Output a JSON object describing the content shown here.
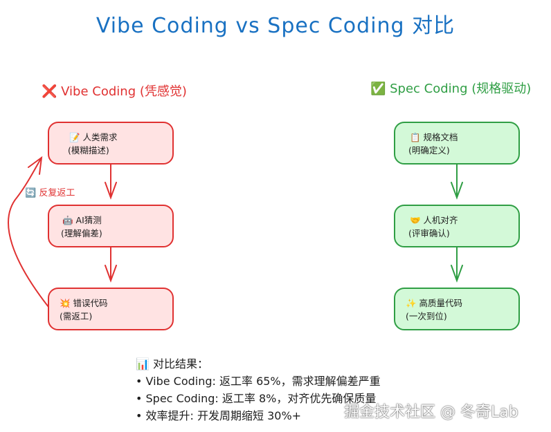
{
  "title": "Vibe Coding vs Spec Coding 对比",
  "vibe": {
    "heading": "❌ Vibe Coding (凭感觉)",
    "loop_label": "🔄 反复返工",
    "steps": [
      {
        "line1": "📝 人类需求",
        "line2": "(模糊描述)"
      },
      {
        "line1": "🤖 AI猜测",
        "line2": "(理解偏差)"
      },
      {
        "line1": "💥 错误代码",
        "line2": "(需返工)"
      }
    ]
  },
  "spec": {
    "heading": "✅ Spec Coding (规格驱动)",
    "steps": [
      {
        "line1": "📋 规格文档",
        "line2": "(明确定义)"
      },
      {
        "line1": "🤝 人机对齐",
        "line2": "(评审确认)"
      },
      {
        "line1": "✨ 高质量代码",
        "line2": "(一次到位)"
      }
    ]
  },
  "summary": {
    "heading": "📊 对比结果：",
    "items": [
      "• Vibe Coding: 返工率 65%，需求理解偏差严重",
      "• Spec Coding: 返工率 8%，对齐优先确保质量",
      "• 效率提升: 开发周期缩短 30%+"
    ]
  },
  "watermark": "掘金技术社区 @ 冬奇Lab",
  "colors": {
    "title": "#1971c2",
    "red_stroke": "#e03131",
    "red_fill": "#ffe3e3",
    "green_stroke": "#2f9e44",
    "green_fill": "#d3f9d8"
  }
}
